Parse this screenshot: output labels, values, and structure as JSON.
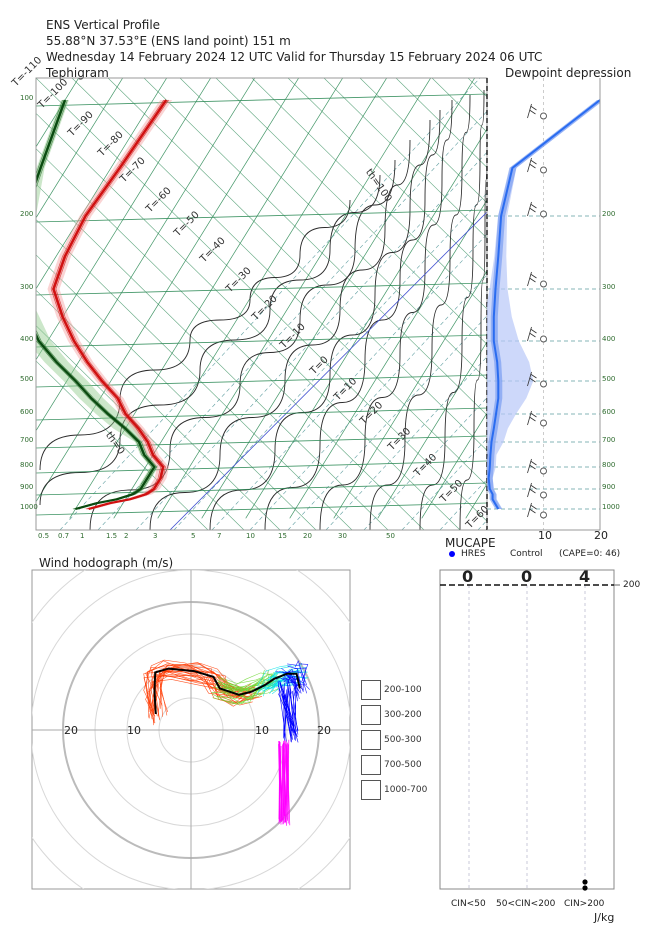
{
  "header": {
    "title": "ENS Vertical Profile",
    "location": " 55.88°N 37.53°E (ENS land point) 151 m",
    "run": "Wednesday 14 February 2024 12 UTC Valid for Thursday 15 February 2024 06 UTC",
    "left_panel": "Tephigram",
    "right_panel": "Dewpoint depression"
  },
  "colors": {
    "temperature": "#d01010",
    "dewpoint": "#0a4a10",
    "dewpoint_depression": "#2a6cf0",
    "isotherm": "#2e8b57",
    "dry_adiabat": "#2b2b2b",
    "saturated_adiabat": "#5f9ea0"
  },
  "chart_data": [
    {
      "type": "line",
      "name": "tephigram",
      "pressure_ticks_left": [
        "100",
        "200",
        "300",
        "400",
        "500",
        "600",
        "700",
        "800",
        "900",
        "1000"
      ],
      "mixing_ratio_ticks_bottom": [
        "0.5",
        "0.7",
        "1",
        "1.5",
        "2",
        "3",
        "5",
        "7",
        "10",
        "15",
        "20",
        "30",
        "50"
      ],
      "isotherm_labels": [
        "T=-110",
        "T=-100",
        "T=-90",
        "T=-80",
        "T=-70",
        "T=-60",
        "T=-50",
        "T=-40",
        "T=-30",
        "T=-20",
        "T=-10",
        "T=0",
        "T=10",
        "T=20",
        "T=30",
        "T=40",
        "T=50",
        "T=60"
      ],
      "theta_labels": [
        "th=100",
        "th=0"
      ],
      "temperature_profile": {
        "pressure_hpa": [
          1000,
          970,
          950,
          925,
          900,
          850,
          800,
          750,
          700,
          650,
          600,
          550,
          500,
          450,
          400,
          350,
          300,
          250,
          200,
          150,
          100
        ],
        "temp_c": [
          -17,
          -13,
          -9,
          -6,
          -5,
          -5,
          -6,
          -10,
          -13,
          -17,
          -22,
          -26,
          -32,
          -38,
          -44,
          -50,
          -56,
          -58,
          -59,
          -58,
          -57
        ]
      },
      "dewpoint_profile": {
        "pressure_hpa": [
          1000,
          970,
          950,
          925,
          900,
          850,
          800,
          750,
          700,
          650,
          600,
          550,
          500,
          450,
          400,
          350,
          300,
          250,
          200,
          150,
          100
        ],
        "dewpoint_c": [
          -20,
          -16,
          -12,
          -9,
          -8,
          -8,
          -8,
          -12,
          -15,
          -20,
          -26,
          -32,
          -38,
          -45,
          -52,
          -58,
          -65,
          -68,
          -73,
          -76,
          -80
        ]
      }
    },
    {
      "type": "line",
      "name": "dewpoint-depression",
      "xlim": [
        0,
        20
      ],
      "x_ticks": [
        "10",
        "20"
      ],
      "pressure_ticks_right": [
        "200",
        "300",
        "400",
        "500",
        "600",
        "700",
        "800",
        "900",
        "1000"
      ],
      "pressure_hpa": [
        1000,
        950,
        925,
        900,
        850,
        800,
        750,
        700,
        650,
        600,
        550,
        500,
        450,
        400,
        350,
        300,
        250,
        200,
        150,
        100
      ],
      "depression_c": [
        2,
        1,
        1,
        0.5,
        0.3,
        0.5,
        0.6,
        0.8,
        1.2,
        1.6,
        2,
        2,
        1.8,
        1.2,
        1.2,
        1.5,
        2,
        2.5,
        4.5,
        20
      ]
    },
    {
      "type": "line",
      "name": "wind-hodograph",
      "title": "Wind hodograph (m/s)",
      "ring_labels": [
        "20",
        "10",
        "10",
        "20"
      ],
      "legend": [
        {
          "label": "200-100",
          "color": "#ff00ff"
        },
        {
          "label": "300-200",
          "color": "#0000ff"
        },
        {
          "label": "500-300",
          "color": "#00e0e8"
        },
        {
          "label": "700-500",
          "color": "#6cd830"
        },
        {
          "label": "1000-700",
          "color": "#ff3a00"
        }
      ],
      "control_u": [
        -5.5,
        -5.7,
        -5.6,
        -3.5,
        0.5,
        3.5,
        4.5,
        7.5,
        9.5,
        11.5,
        13,
        15,
        16.5,
        17.0
      ],
      "control_v": [
        2.5,
        6.0,
        9.0,
        9.6,
        9.2,
        8.3,
        6.5,
        5.5,
        6.0,
        7.0,
        8.0,
        8.8,
        8.8,
        6.5
      ]
    },
    {
      "type": "scatter",
      "name": "mucape",
      "title": "MUCAPE",
      "legend_hres": "HRES",
      "legend_control": "Control",
      "cape_note": "(CAPE=0: 46)",
      "counts": [
        "0",
        "0",
        "4"
      ],
      "categories": [
        "CIN<50",
        "50<CIN<200",
        "CIN>200"
      ],
      "y_tick": "200",
      "x_unit": "J/kg"
    }
  ]
}
